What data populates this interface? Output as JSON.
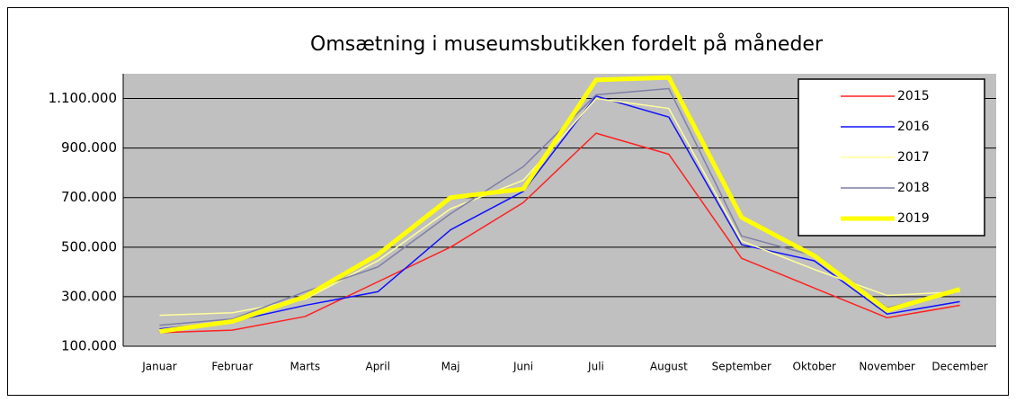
{
  "chart_data": {
    "type": "line",
    "title": "Omsætning i museumsbutikken fordelt på måneder",
    "categories": [
      "Januar",
      "Februar",
      "Marts",
      "April",
      "Maj",
      "Juni",
      "Juli",
      "August",
      "September",
      "Oktober",
      "November",
      "December"
    ],
    "series": [
      {
        "name": "2015",
        "color": "#ff2020",
        "linewidth": 1.5,
        "values": [
          155000,
          165000,
          220000,
          360000,
          500000,
          680000,
          960000,
          875000,
          455000,
          335000,
          215000,
          265000
        ]
      },
      {
        "name": "2016",
        "color": "#1010ff",
        "linewidth": 1.5,
        "values": [
          170000,
          200000,
          265000,
          320000,
          570000,
          725000,
          1110000,
          1025000,
          510000,
          445000,
          230000,
          280000
        ]
      },
      {
        "name": "2017",
        "color": "#ffff99",
        "linewidth": 1.5,
        "values": [
          225000,
          235000,
          290000,
          445000,
          655000,
          770000,
          1100000,
          1060000,
          525000,
          410000,
          305000,
          320000
        ]
      },
      {
        "name": "2018",
        "color": "#7f7fa8",
        "linewidth": 1.5,
        "values": [
          185000,
          210000,
          320000,
          420000,
          635000,
          825000,
          1115000,
          1140000,
          545000,
          465000,
          255000,
          325000
        ]
      },
      {
        "name": "2019",
        "color": "#ffff00",
        "linewidth": 5,
        "values": [
          160000,
          200000,
          300000,
          470000,
          700000,
          735000,
          1175000,
          1185000,
          620000,
          465000,
          245000,
          330000
        ]
      }
    ],
    "ylim": [
      100000,
      1200000
    ],
    "yticks": [
      {
        "value": 100000,
        "label": "100.000"
      },
      {
        "value": 300000,
        "label": "300.000"
      },
      {
        "value": 500000,
        "label": "500.000"
      },
      {
        "value": 700000,
        "label": "700.000"
      },
      {
        "value": 900000,
        "label": "900.000"
      },
      {
        "value": 1100000,
        "label": "1.100.000"
      }
    ],
    "grid": true,
    "legend": "upper right"
  }
}
